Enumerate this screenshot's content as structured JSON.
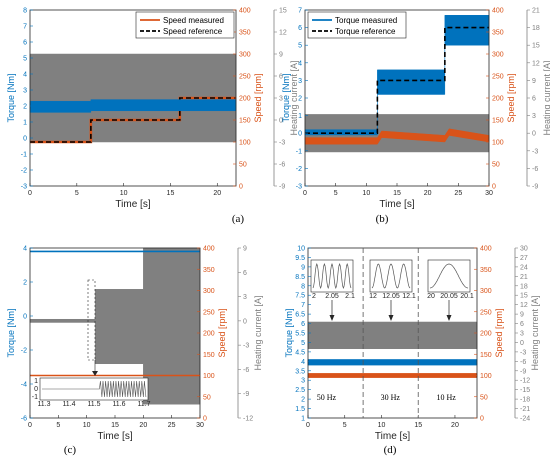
{
  "colors": {
    "torque": "#0072bd",
    "speed": "#d95319",
    "heating": "#808080",
    "reference": "#000000"
  },
  "chart_data": [
    {
      "id": "a",
      "type": "line",
      "panel_label": "(a)",
      "xlabel": "Time [s]",
      "ylabel_left": "Torque [Nm]",
      "ylabel_speed": "Speed [rpm]",
      "ylabel_current": "Heating current [A]",
      "xlim": [
        0,
        22
      ],
      "xticks": [
        0,
        5,
        10,
        15,
        20
      ],
      "ylim_left": [
        -3,
        8
      ],
      "yticks_left": [
        -3,
        -2,
        -1,
        0,
        1,
        2,
        3,
        4,
        5,
        6,
        7,
        8
      ],
      "ylim_speed": [
        0,
        400
      ],
      "yticks_speed": [
        0,
        50,
        100,
        150,
        200,
        250,
        300,
        350,
        400
      ],
      "ylim_current": [
        -9,
        15
      ],
      "yticks_current": [
        -9,
        -6,
        -3,
        0,
        3,
        6,
        9,
        12,
        15
      ],
      "legend": [
        "Speed measured",
        "Speed reference"
      ],
      "legend_position": "top-right",
      "series": [
        {
          "name": "Speed measured",
          "axis": "speed",
          "x": [
            0,
            6.5,
            6.5,
            16,
            16,
            22
          ],
          "y": [
            100,
            100,
            150,
            150,
            200,
            200
          ]
        },
        {
          "name": "Speed reference",
          "axis": "speed",
          "style": "dashed",
          "x": [
            0,
            6.5,
            6.5,
            16,
            16,
            22
          ],
          "y": [
            100,
            100,
            150,
            150,
            200,
            200
          ]
        },
        {
          "axis": "left",
          "band": true,
          "x": [
            0,
            6.5,
            6.5,
            22
          ],
          "ymin": [
            1.6,
            1.6,
            1.7,
            1.7
          ],
          "ymax": [
            2.3,
            2.3,
            2.4,
            2.4
          ]
        },
        {
          "axis": "current",
          "band": true,
          "x": [
            0,
            22
          ],
          "ymin": [
            -3,
            -3
          ],
          "ymax": [
            9,
            9
          ]
        }
      ]
    },
    {
      "id": "b",
      "type": "line",
      "panel_label": "(b)",
      "xlabel": "Time [s]",
      "ylabel_left": "Torque [Nm]",
      "ylabel_speed": "Speed [rpm]",
      "ylabel_current": "Heating current [A]",
      "xlim": [
        0,
        30
      ],
      "xticks": [
        0,
        5,
        10,
        15,
        20,
        25,
        30
      ],
      "ylim_left": [
        -3,
        7
      ],
      "yticks_left": [
        -3,
        -2,
        -1,
        0,
        1,
        2,
        3,
        4,
        5,
        6,
        7
      ],
      "ylim_speed": [
        0,
        400
      ],
      "yticks_speed": [
        0,
        50,
        100,
        150,
        200,
        250,
        300,
        350,
        400
      ],
      "ylim_current": [
        -9,
        21
      ],
      "yticks_current": [
        -9,
        -6,
        -3,
        0,
        3,
        6,
        9,
        12,
        15,
        18,
        21
      ],
      "legend": [
        "Torque measured",
        "Torque reference"
      ],
      "legend_position": "top-left",
      "series": [
        {
          "name": "Torque measured",
          "axis": "left",
          "band": true,
          "x": [
            0,
            11.8,
            11.8,
            22.8,
            22.8,
            30
          ],
          "ymin": [
            -0.1,
            -0.1,
            2.2,
            2.2,
            5.0,
            5.0
          ],
          "ymax": [
            0.2,
            0.2,
            3.6,
            3.6,
            6.7,
            6.7
          ]
        },
        {
          "name": "Torque reference",
          "axis": "left",
          "style": "dashed",
          "x": [
            0,
            11.8,
            11.8,
            22.8,
            22.8,
            30
          ],
          "y": [
            0,
            0,
            3,
            3,
            6,
            6
          ]
        },
        {
          "axis": "speed",
          "band": true,
          "x": [
            0,
            11.8,
            12.5,
            22.8,
            23.5,
            30
          ],
          "ymin": [
            95,
            95,
            110,
            100,
            115,
            100
          ],
          "ymax": [
            110,
            110,
            125,
            115,
            130,
            115
          ]
        },
        {
          "axis": "current",
          "band": true,
          "x": [
            0,
            30
          ],
          "ymin": [
            -3.2,
            -3.2
          ],
          "ymax": [
            3.2,
            3.2
          ]
        }
      ]
    },
    {
      "id": "c",
      "type": "line",
      "panel_label": "(c)",
      "xlabel": "Time [s]",
      "ylabel_left": "Torque [Nm]",
      "ylabel_speed": "Speed [rpm]",
      "ylabel_current": "Heating current [A]",
      "xlim": [
        0,
        30
      ],
      "xticks": [
        0,
        5,
        10,
        15,
        20,
        25,
        30
      ],
      "ylim_left": [
        -6,
        4
      ],
      "yticks_left": [
        -6,
        -4,
        -2,
        0,
        2,
        4
      ],
      "ylim_speed": [
        0,
        400
      ],
      "yticks_speed": [
        0,
        50,
        100,
        150,
        200,
        250,
        300,
        350,
        400
      ],
      "ylim_current": [
        -12,
        9
      ],
      "yticks_current": [
        -12,
        -9,
        -6,
        -3,
        0,
        3,
        6,
        9
      ],
      "legend_position": "none",
      "inset": {
        "xticks": [
          11.3,
          11.4,
          11.5,
          11.6,
          11.7
        ],
        "yticks": [
          -1,
          0,
          1
        ]
      },
      "series": [
        {
          "axis": "left",
          "x": [
            0,
            30
          ],
          "y": [
            3.8,
            3.8
          ]
        },
        {
          "axis": "speed",
          "x": [
            0,
            30
          ],
          "y": [
            100,
            100
          ]
        },
        {
          "axis": "current",
          "band": true,
          "x": [
            0,
            11.5,
            11.5,
            20,
            20,
            30
          ],
          "ymin": [
            -0.2,
            -0.2,
            -5.3,
            -5.3,
            -10.3,
            -10.3
          ],
          "ymax": [
            0.2,
            0.2,
            3.9,
            3.9,
            9,
            9
          ]
        }
      ]
    },
    {
      "id": "d",
      "type": "line",
      "panel_label": "(d)",
      "xlabel": "Time [s]",
      "ylabel_left": "Torque [Nm]",
      "ylabel_speed": "Speed [rpm]",
      "ylabel_current": "Heating current [A]",
      "xlim": [
        0,
        23
      ],
      "xticks": [
        0,
        5,
        10,
        15,
        20
      ],
      "ylim_left": [
        1,
        10
      ],
      "yticks_left": [
        1,
        1.5,
        2,
        2.5,
        3,
        3.5,
        4,
        4.5,
        5,
        5.5,
        6,
        6.5,
        7,
        7.5,
        8,
        8.5,
        9,
        9.5,
        10
      ],
      "ylim_speed": [
        0,
        400
      ],
      "yticks_speed": [
        0,
        50,
        100,
        150,
        200,
        250,
        300,
        350,
        400
      ],
      "ylim_current": [
        -24,
        30
      ],
      "yticks_current": [
        -24,
        -21,
        -18,
        -15,
        -12,
        -9,
        -6,
        -3,
        0,
        3,
        6,
        9,
        12,
        15,
        18,
        21,
        24,
        27,
        30
      ],
      "legend_position": "none",
      "annotations": [
        "50 Hz",
        "30 Hz",
        "10 Hz"
      ],
      "dividers": [
        7.5,
        15
      ],
      "insets": [
        {
          "xticks": [
            "2",
            "2.05",
            "2.1"
          ]
        },
        {
          "xticks": [
            "12",
            "12.05",
            "12.1"
          ]
        },
        {
          "xticks": [
            "20",
            "20.05",
            "20.1"
          ]
        }
      ],
      "series": [
        {
          "axis": "left",
          "band": true,
          "x": [
            0,
            23
          ],
          "ymin": [
            3.8,
            3.8
          ],
          "ymax": [
            4.1,
            4.1
          ]
        },
        {
          "axis": "speed",
          "band": true,
          "x": [
            0,
            23
          ],
          "ymin": [
            95,
            95
          ],
          "ymax": [
            105,
            105
          ]
        },
        {
          "axis": "current",
          "band": true,
          "x": [
            0,
            23
          ],
          "ymin": [
            -2,
            -2
          ],
          "ymax": [
            6.5,
            6.5
          ]
        }
      ]
    }
  ]
}
